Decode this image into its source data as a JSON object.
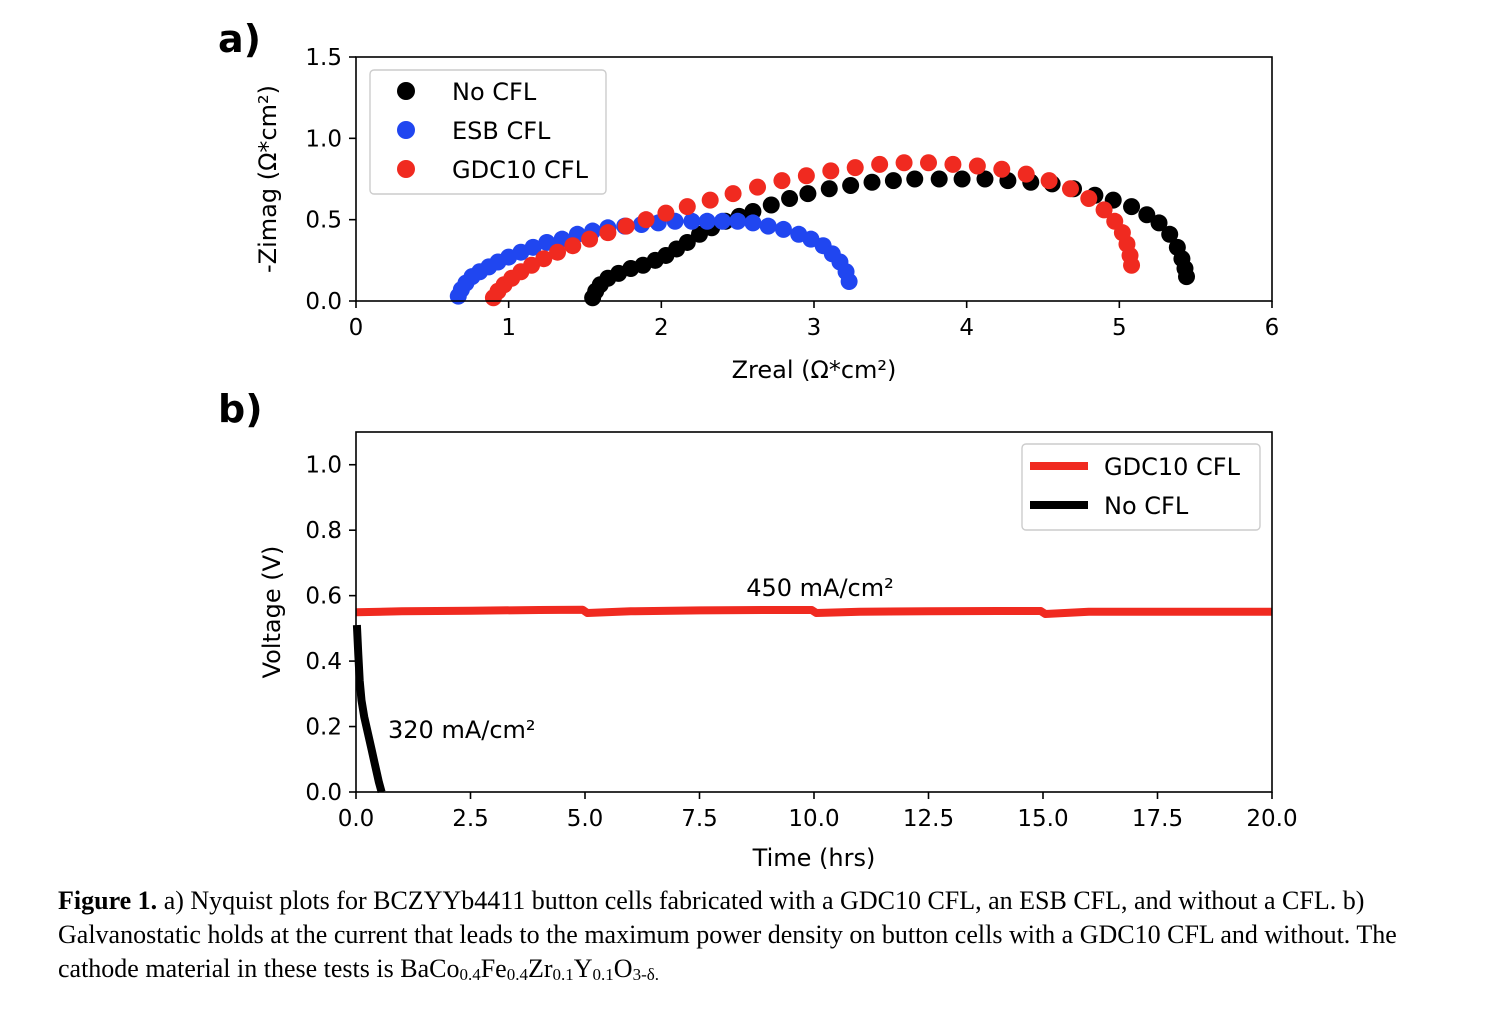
{
  "chart_data": [
    {
      "panel_label": "a)",
      "type": "scatter",
      "xlabel": "Zreal (Ω*cm²)",
      "ylabel": "-Zimag (Ω*cm²)",
      "xlim": [
        0,
        6
      ],
      "ylim": [
        0,
        1.5
      ],
      "xticks": [
        0,
        1,
        2,
        3,
        4,
        5,
        6
      ],
      "xtick_labels": [
        "0",
        "1",
        "2",
        "3",
        "4",
        "5",
        "6"
      ],
      "yticks": [
        0,
        0.5,
        1.0,
        1.5
      ],
      "ytick_labels": [
        "0.0",
        "0.5",
        "1.0",
        "1.5"
      ],
      "grid": false,
      "legend_position": "top-left",
      "series": [
        {
          "name": "No CFL",
          "color": "#000000",
          "points": [
            [
              1.55,
              0.02
            ],
            [
              1.57,
              0.06
            ],
            [
              1.6,
              0.1
            ],
            [
              1.65,
              0.14
            ],
            [
              1.72,
              0.17
            ],
            [
              1.8,
              0.2
            ],
            [
              1.88,
              0.22
            ],
            [
              1.96,
              0.25
            ],
            [
              2.03,
              0.28
            ],
            [
              2.1,
              0.32
            ],
            [
              2.17,
              0.36
            ],
            [
              2.25,
              0.41
            ],
            [
              2.33,
              0.45
            ],
            [
              2.42,
              0.49
            ],
            [
              2.51,
              0.52
            ],
            [
              2.6,
              0.55
            ],
            [
              2.72,
              0.59
            ],
            [
              2.84,
              0.63
            ],
            [
              2.96,
              0.66
            ],
            [
              3.1,
              0.69
            ],
            [
              3.24,
              0.71
            ],
            [
              3.38,
              0.73
            ],
            [
              3.52,
              0.74
            ],
            [
              3.66,
              0.75
            ],
            [
              3.82,
              0.75
            ],
            [
              3.97,
              0.75
            ],
            [
              4.12,
              0.75
            ],
            [
              4.27,
              0.74
            ],
            [
              4.42,
              0.73
            ],
            [
              4.56,
              0.72
            ],
            [
              4.7,
              0.69
            ],
            [
              4.84,
              0.65
            ],
            [
              4.96,
              0.62
            ],
            [
              5.08,
              0.58
            ],
            [
              5.18,
              0.53
            ],
            [
              5.26,
              0.48
            ],
            [
              5.33,
              0.41
            ],
            [
              5.38,
              0.33
            ],
            [
              5.41,
              0.26
            ],
            [
              5.43,
              0.2
            ],
            [
              5.44,
              0.15
            ]
          ]
        },
        {
          "name": "ESB CFL",
          "color": "#2046f0",
          "points": [
            [
              0.67,
              0.03
            ],
            [
              0.69,
              0.07
            ],
            [
              0.72,
              0.11
            ],
            [
              0.76,
              0.15
            ],
            [
              0.81,
              0.18
            ],
            [
              0.87,
              0.21
            ],
            [
              0.93,
              0.24
            ],
            [
              1.0,
              0.27
            ],
            [
              1.08,
              0.3
            ],
            [
              1.16,
              0.33
            ],
            [
              1.25,
              0.36
            ],
            [
              1.35,
              0.38
            ],
            [
              1.45,
              0.41
            ],
            [
              1.55,
              0.43
            ],
            [
              1.65,
              0.45
            ],
            [
              1.76,
              0.46
            ],
            [
              1.87,
              0.47
            ],
            [
              1.98,
              0.48
            ],
            [
              2.09,
              0.49
            ],
            [
              2.2,
              0.49
            ],
            [
              2.3,
              0.49
            ],
            [
              2.4,
              0.49
            ],
            [
              2.5,
              0.49
            ],
            [
              2.6,
              0.48
            ],
            [
              2.7,
              0.46
            ],
            [
              2.8,
              0.44
            ],
            [
              2.9,
              0.41
            ],
            [
              2.98,
              0.38
            ],
            [
              3.06,
              0.34
            ],
            [
              3.12,
              0.29
            ],
            [
              3.17,
              0.24
            ],
            [
              3.21,
              0.18
            ],
            [
              3.23,
              0.12
            ]
          ]
        },
        {
          "name": "GDC10 CFL",
          "color": "#f02a20",
          "points": [
            [
              0.9,
              0.02
            ],
            [
              0.93,
              0.06
            ],
            [
              0.97,
              0.1
            ],
            [
              1.02,
              0.14
            ],
            [
              1.08,
              0.18
            ],
            [
              1.15,
              0.22
            ],
            [
              1.23,
              0.26
            ],
            [
              1.32,
              0.3
            ],
            [
              1.42,
              0.34
            ],
            [
              1.53,
              0.38
            ],
            [
              1.65,
              0.42
            ],
            [
              1.77,
              0.46
            ],
            [
              1.9,
              0.5
            ],
            [
              2.03,
              0.54
            ],
            [
              2.17,
              0.58
            ],
            [
              2.32,
              0.62
            ],
            [
              2.47,
              0.66
            ],
            [
              2.63,
              0.7
            ],
            [
              2.79,
              0.74
            ],
            [
              2.95,
              0.77
            ],
            [
              3.11,
              0.8
            ],
            [
              3.27,
              0.82
            ],
            [
              3.43,
              0.84
            ],
            [
              3.59,
              0.85
            ],
            [
              3.75,
              0.85
            ],
            [
              3.91,
              0.84
            ],
            [
              4.07,
              0.83
            ],
            [
              4.23,
              0.81
            ],
            [
              4.39,
              0.78
            ],
            [
              4.54,
              0.74
            ],
            [
              4.68,
              0.69
            ],
            [
              4.8,
              0.63
            ],
            [
              4.9,
              0.56
            ],
            [
              4.97,
              0.49
            ],
            [
              5.02,
              0.42
            ],
            [
              5.05,
              0.35
            ],
            [
              5.07,
              0.28
            ],
            [
              5.08,
              0.22
            ]
          ]
        }
      ]
    },
    {
      "panel_label": "b)",
      "type": "line",
      "xlabel": "Time (hrs)",
      "ylabel": "Voltage (V)",
      "xlim": [
        0,
        20
      ],
      "ylim": [
        0,
        1.1
      ],
      "xticks": [
        0,
        2.5,
        5,
        7.5,
        10,
        12.5,
        15,
        17.5,
        20
      ],
      "xtick_labels": [
        "0.0",
        "2.5",
        "5.0",
        "7.5",
        "10.0",
        "12.5",
        "15.0",
        "17.5",
        "20.0"
      ],
      "yticks": [
        0,
        0.2,
        0.4,
        0.6,
        0.8,
        1.0
      ],
      "ytick_labels": [
        "0.0",
        "0.2",
        "0.4",
        "0.6",
        "0.8",
        "1.0"
      ],
      "grid": false,
      "legend_position": "top-right",
      "series": [
        {
          "name": "GDC10 CFL",
          "color": "#f02a20",
          "points": [
            [
              0,
              0.549
            ],
            [
              1,
              0.552
            ],
            [
              2.5,
              0.554
            ],
            [
              4,
              0.556
            ],
            [
              4.95,
              0.557
            ],
            [
              5.05,
              0.547
            ],
            [
              6,
              0.552
            ],
            [
              7.5,
              0.555
            ],
            [
              9,
              0.556
            ],
            [
              9.95,
              0.556
            ],
            [
              10.05,
              0.547
            ],
            [
              11,
              0.551
            ],
            [
              12.5,
              0.552
            ],
            [
              14,
              0.553
            ],
            [
              14.95,
              0.553
            ],
            [
              15.05,
              0.544
            ],
            [
              16,
              0.551
            ],
            [
              17.5,
              0.551
            ],
            [
              20,
              0.551
            ]
          ]
        },
        {
          "name": "No CFL",
          "color": "#000000",
          "points": [
            [
              0.02,
              0.51
            ],
            [
              0.05,
              0.42
            ],
            [
              0.08,
              0.34
            ],
            [
              0.12,
              0.28
            ],
            [
              0.18,
              0.23
            ],
            [
              0.26,
              0.18
            ],
            [
              0.34,
              0.13
            ],
            [
              0.42,
              0.08
            ],
            [
              0.5,
              0.03
            ],
            [
              0.56,
              0.0
            ]
          ]
        }
      ],
      "annotations": [
        {
          "text": "450 mA/cm²",
          "x": 10.0,
          "y": 0.6
        },
        {
          "text": "320 mA/cm²",
          "x": 0.6,
          "y": 0.19
        }
      ]
    }
  ],
  "caption": {
    "label": "Figure 1.",
    "text": " a) Nyquist plots for BCZYYb4411 button cells fabricated with a GDC10 CFL, an ESB CFL, and without a CFL. b) Galvanostatic holds at the current that leads to the maximum power density on button cells with a GDC10 CFL and without. The cathode material in these tests is ",
    "formula_parts": [
      {
        "t": "BaCo",
        "sub": false
      },
      {
        "t": "0.4",
        "sub": true
      },
      {
        "t": "Fe",
        "sub": false
      },
      {
        "t": "0.4",
        "sub": true
      },
      {
        "t": "Zr",
        "sub": false
      },
      {
        "t": "0.1",
        "sub": true
      },
      {
        "t": "Y",
        "sub": false
      },
      {
        "t": "0.1",
        "sub": true
      },
      {
        "t": "O",
        "sub": false
      },
      {
        "t": "3-δ.",
        "sub": true
      }
    ]
  }
}
